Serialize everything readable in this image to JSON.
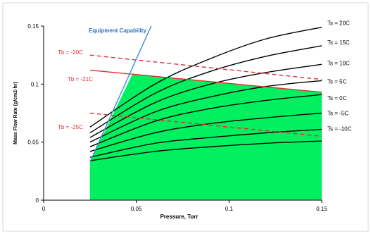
{
  "chart_data": {
    "type": "area",
    "xlabel": "Pressure, Torr",
    "ylabel": "Mass Flow Rate (g/cm2-hr)",
    "xlim": [
      0,
      0.15
    ],
    "ylim": [
      0,
      0.15
    ],
    "x_ticks": [
      "0",
      "0.05",
      "0.1",
      "0.15"
    ],
    "y_ticks": [
      "0",
      "0.05",
      "0.1",
      "0.15"
    ],
    "grid": false,
    "colors": {
      "fill": "#00f060",
      "ts": "#000000",
      "tb": "#e03030",
      "equip": "#3c8fd0",
      "equip_label": "#2d6fc4"
    },
    "design_space": {
      "x": [
        0.025,
        0.025,
        0.048,
        0.15,
        0.15
      ],
      "y": [
        0,
        0.033,
        0.109,
        0.093,
        0
      ]
    },
    "equipment_capability": {
      "name": "Equipment Capability",
      "x": [
        0.025,
        0.058
      ],
      "y": [
        0.033,
        0.15
      ]
    },
    "ts_series": [
      {
        "name": "Ts = 20C",
        "x": [
          0.025,
          0.06,
          0.09,
          0.12,
          0.15
        ],
        "y": [
          0.063,
          0.1,
          0.122,
          0.139,
          0.149
        ]
      },
      {
        "name": "Ts = 15C",
        "x": [
          0.025,
          0.06,
          0.09,
          0.12,
          0.15
        ],
        "y": [
          0.058,
          0.092,
          0.111,
          0.124,
          0.133
        ]
      },
      {
        "name": "Ts = 10C",
        "x": [
          0.025,
          0.06,
          0.09,
          0.12,
          0.15
        ],
        "y": [
          0.054,
          0.084,
          0.1,
          0.11,
          0.117
        ]
      },
      {
        "name": "Ts = 5C",
        "x": [
          0.025,
          0.06,
          0.09,
          0.12,
          0.15
        ],
        "y": [
          0.05,
          0.076,
          0.089,
          0.098,
          0.103
        ]
      },
      {
        "name": "Ts = 0C",
        "x": [
          0.025,
          0.06,
          0.09,
          0.12,
          0.15
        ],
        "y": [
          0.046,
          0.068,
          0.079,
          0.086,
          0.091
        ]
      },
      {
        "name": "Ts = -5C",
        "x": [
          0.025,
          0.06,
          0.09,
          0.12,
          0.15
        ],
        "y": [
          0.042,
          0.058,
          0.066,
          0.071,
          0.075
        ]
      },
      {
        "name": "Ts = -10C",
        "x": [
          0.025,
          0.06,
          0.09,
          0.12,
          0.15
        ],
        "y": [
          0.037,
          0.049,
          0.054,
          0.058,
          0.061
        ]
      },
      {
        "name": "",
        "x": [
          0.025,
          0.06,
          0.09,
          0.12,
          0.15
        ],
        "y": [
          0.034,
          0.042,
          0.046,
          0.049,
          0.051
        ]
      }
    ],
    "tb_series": [
      {
        "name": "Tb = -20C",
        "style": "dashed",
        "x": [
          0.025,
          0.15
        ],
        "y": [
          0.125,
          0.104
        ]
      },
      {
        "name": "Tb = -21C",
        "style": "solid",
        "x": [
          0.025,
          0.15
        ],
        "y": [
          0.112,
          0.093
        ]
      },
      {
        "name": "Tb = -25C",
        "style": "dashed",
        "x": [
          0.025,
          0.15
        ],
        "y": [
          0.075,
          0.055
        ]
      }
    ]
  }
}
